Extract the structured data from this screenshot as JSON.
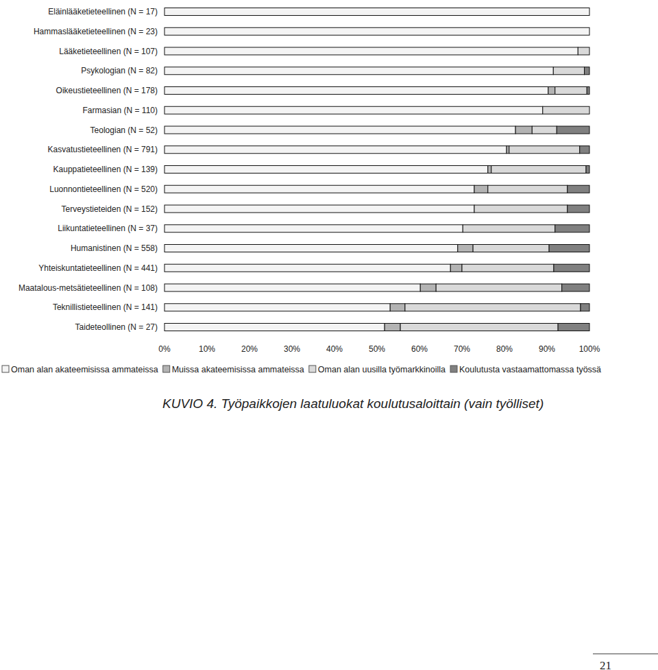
{
  "chart_data": {
    "type": "bar",
    "orientation": "horizontal",
    "stacked": true,
    "title": "KUVIO 4. Työpaikkojen laatuluokat koulutusaloittain (vain työlliset)",
    "annotations": [
      "21"
    ],
    "categories": [
      "Eläinlääketieteellinen (N = 17)",
      "Hammaslääketieteellinen (N = 23)",
      "Lääketieteellinen (N = 107)",
      "Psykologian (N = 82)",
      "Oikeustieteellinen (N = 178)",
      "Farmasian (N = 110)",
      "Teologian (N = 52)",
      "Kasvatustieteellinen (N = 791)",
      "Kauppatieteellinen (N = 139)",
      "Luonnontieteellinen (N = 520)",
      "Terveystieteiden (N = 152)",
      "Liikuntatieteellinen (N = 37)",
      "Humanistinen (N = 558)",
      "Yhteiskuntatieteellinen (N = 441)",
      "Maatalous-metsätieteellinen (N = 108)",
      "Teknillistieteellinen (N = 141)",
      "Taideteollinen (N = 27)"
    ],
    "series": [
      {
        "name": "Oman alan akateemisissa ammateissa",
        "color": "#f4f4f4",
        "values": [
          100,
          100,
          97.3,
          91.5,
          90.3,
          89.0,
          82.6,
          80.5,
          76.1,
          72.9,
          72.9,
          70.2,
          69.0,
          67.3,
          60.2,
          53.1,
          51.8
        ]
      },
      {
        "name": "Muissa akateemisissa ammateissa",
        "color": "#b3b3b3",
        "values": [
          0,
          0,
          0,
          0,
          1.6,
          0,
          3.9,
          0.6,
          0.8,
          3.2,
          0,
          0,
          3.6,
          2.7,
          3.7,
          3.5,
          3.7
        ]
      },
      {
        "name": "Oman alan uusilla työmarkkinoilla",
        "color": "#d9d9d9",
        "values": [
          0,
          0,
          2.7,
          7.3,
          7.5,
          11.0,
          5.8,
          16.6,
          22.3,
          18.7,
          21.9,
          21.7,
          17.9,
          21.6,
          29.6,
          41.3,
          37.1
        ]
      },
      {
        "name": "Koulutusta vastaamattomassa työssä",
        "color": "#808080",
        "values": [
          0,
          0,
          0,
          1.2,
          0.6,
          0,
          7.7,
          2.3,
          0.8,
          5.2,
          5.2,
          8.1,
          9.5,
          8.4,
          6.5,
          2.1,
          7.4
        ]
      }
    ],
    "xlim": [
      0,
      100
    ],
    "xticks": [
      {
        "value": 0,
        "label": "0%"
      },
      {
        "value": 10,
        "label": "10%"
      },
      {
        "value": 20,
        "label": "20%"
      },
      {
        "value": 30,
        "label": "30%"
      },
      {
        "value": 40,
        "label": "40%"
      },
      {
        "value": 50,
        "label": "50%"
      },
      {
        "value": 60,
        "label": "60%"
      },
      {
        "value": 70,
        "label": "70%"
      },
      {
        "value": 80,
        "label": "80%"
      },
      {
        "value": 90,
        "label": "90%"
      },
      {
        "value": 100,
        "label": "100%"
      }
    ],
    "grid": false,
    "legend": "bottom"
  }
}
